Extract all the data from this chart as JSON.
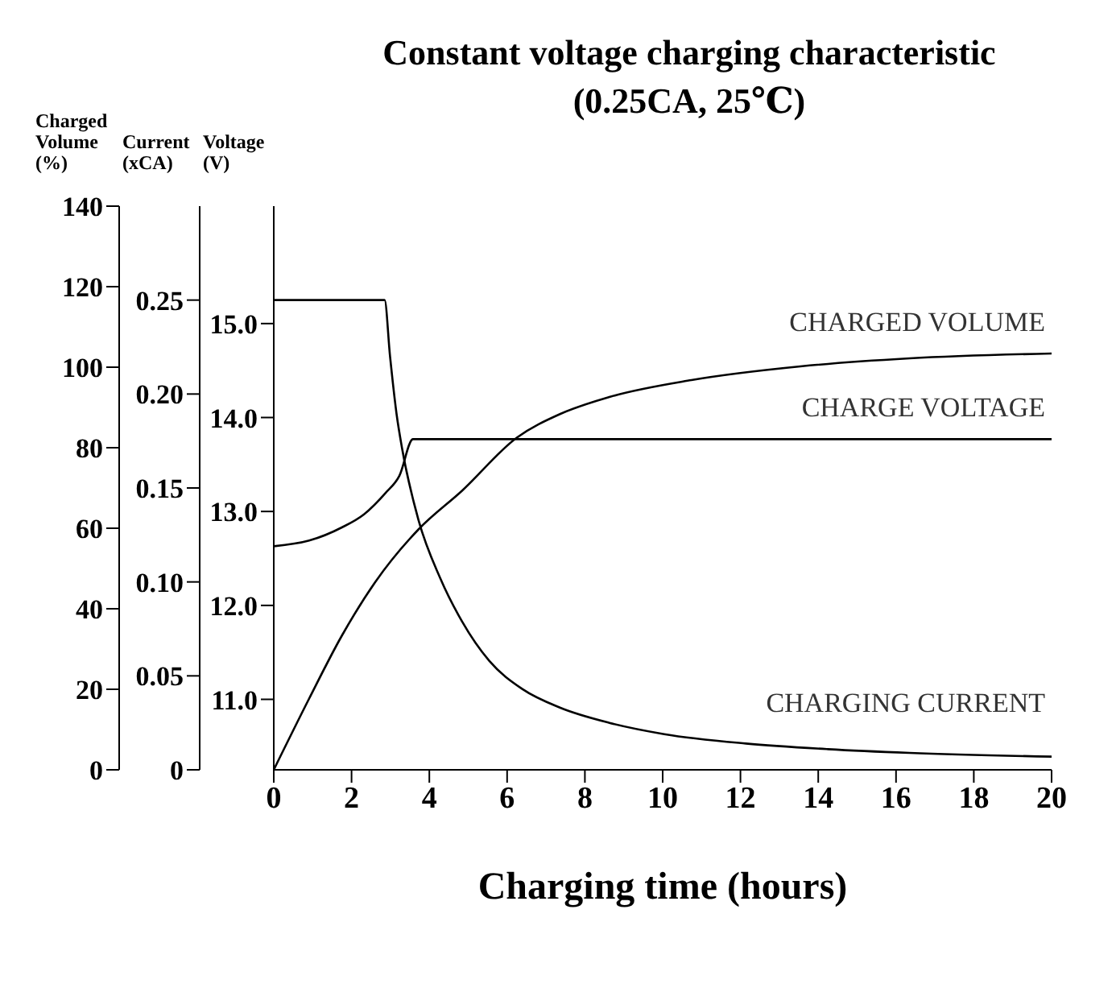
{
  "chart_data": {
    "type": "line",
    "title": "Constant voltage charging characteristic",
    "subtitle": "(0.25CA, 25℃)",
    "xlabel": "Charging time (hours)",
    "ylabel": "Charged Volume (%)",
    "y2label": "Current (xCA)",
    "y3label": "Voltage (V)",
    "xlim": [
      0,
      20
    ],
    "xticks": [
      0,
      2,
      4,
      6,
      8,
      10,
      12,
      14,
      16,
      18,
      20
    ],
    "ylim": [
      0,
      140
    ],
    "yticks": [
      0,
      20,
      40,
      60,
      80,
      100,
      120,
      140
    ],
    "y2lim": [
      0,
      0.3
    ],
    "y2ticks": [
      0,
      0.05,
      {
        "value": 0.1,
        "label": "0.10"
      },
      0.15,
      {
        "value": 0.2,
        "label": "0.20"
      },
      0.25
    ],
    "y3lim": [
      10.25,
      16.25
    ],
    "y3ticks": [
      {
        "value": 11,
        "label": "11.0"
      },
      {
        "value": 12,
        "label": "12.0"
      },
      {
        "value": 13,
        "label": "13.0"
      },
      {
        "value": 14,
        "label": "14.0"
      },
      {
        "value": 15,
        "label": "15.0"
      }
    ],
    "marker": "none",
    "line_style": "solid",
    "series": [
      {
        "name": "CHARGED VOLUME",
        "color": "#000000",
        "axis": "y",
        "x": [
          0,
          0.91,
          1.75,
          2.6,
          3.72,
          4.84,
          6.25,
          7.37,
          8.63,
          10.74,
          13.54,
          16.35,
          20
        ],
        "values": [
          0,
          17.7,
          33.3,
          46.5,
          59.7,
          69.3,
          82.5,
          88.4,
          92.6,
          96.8,
          100.2,
          102.2,
          103.4
        ]
      },
      {
        "name": "CHARGE VOLTAGE",
        "color": "#000000",
        "axis": "y3",
        "x": [
          0,
          0.91,
          1.75,
          2.32,
          2.88,
          3.23,
          3.58,
          20
        ],
        "values": [
          12.63,
          12.69,
          12.83,
          12.97,
          13.2,
          13.38,
          13.77,
          13.77
        ]
      },
      {
        "name": "CHARGING CURRENT",
        "color": "#000000",
        "axis": "y2",
        "x": [
          0,
          2.85,
          2.99,
          3.16,
          3.3,
          3.72,
          4.28,
          4.84,
          5.54,
          6.39,
          7.37,
          8.63,
          10.04,
          12.14,
          14.25,
          16.35,
          20
        ],
        "values": [
          0.25,
          0.25,
          0.22,
          0.189,
          0.171,
          0.133,
          0.102,
          0.079,
          0.058,
          0.043,
          0.033,
          0.025,
          0.019,
          0.014,
          0.011,
          0.009,
          0.007
        ]
      }
    ]
  }
}
